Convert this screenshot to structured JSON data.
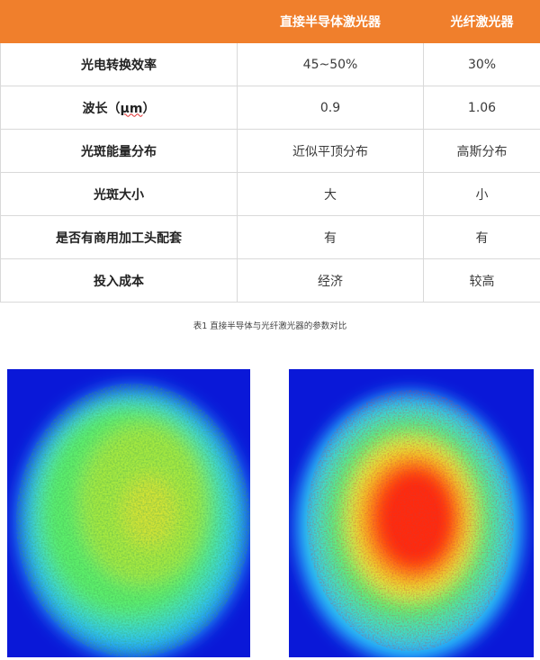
{
  "table": {
    "headers": [
      "",
      "直接半导体激光器",
      "光纤激光器"
    ],
    "rows": [
      {
        "label": "光电转换效率",
        "a": "45~50%",
        "b": "30%"
      },
      {
        "label_prefix": "波长（",
        "label_unit": "μm",
        "label_suffix": "）",
        "a": "0.9",
        "b": "1.06"
      },
      {
        "label": "光斑能量分布",
        "a": "近似平顶分布",
        "b": "高斯分布"
      },
      {
        "label": "光斑大小",
        "a": "大",
        "b": "小"
      },
      {
        "label": "是否有商用加工头配套",
        "a": "有",
        "b": "有"
      },
      {
        "label": "投入成本",
        "a": "经济",
        "b": "较高"
      }
    ]
  },
  "caption": "表1 直接半导体与光纤激光器的参数对比",
  "images": [
    {
      "name": "direct-diode-beam-profile",
      "distribution": "near flat-top",
      "colors": [
        "#0a18d8",
        "#28b8ff",
        "#3cf07a",
        "#c8ec3a"
      ]
    },
    {
      "name": "fiber-laser-beam-profile",
      "distribution": "gaussian",
      "colors": [
        "#0a18d8",
        "#28b8ff",
        "#3cf07a",
        "#e8e830",
        "#ff2a10"
      ]
    }
  ]
}
